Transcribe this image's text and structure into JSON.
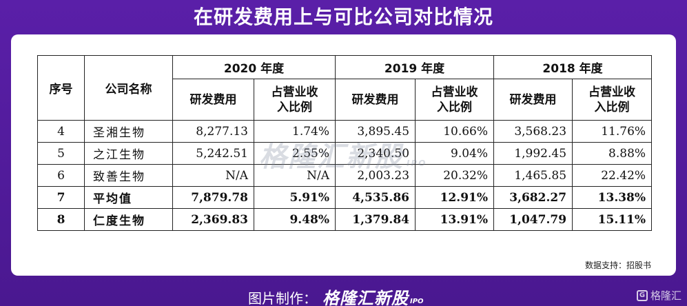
{
  "title": "在研发费用上与可比公司对比情况",
  "table": {
    "col_no": "序号",
    "col_name": "公司名称",
    "years": [
      "2020 年度",
      "2019 年度",
      "2018 年度"
    ],
    "sub_expense": "研发费用",
    "sub_ratio_line1": "占营业收",
    "sub_ratio_line2": "入比例",
    "rows": [
      {
        "no": "4",
        "name": "圣湘生物",
        "v": [
          "8,277.13",
          "1.74%",
          "3,895.45",
          "10.66%",
          "3,568.23",
          "11.76%"
        ]
      },
      {
        "no": "5",
        "name": "之江生物",
        "v": [
          "5,242.51",
          "2.55%",
          "2,340.50",
          "9.04%",
          "1,992.45",
          "8.88%"
        ]
      },
      {
        "no": "6",
        "name": "致善生物",
        "v": [
          "N/A",
          "N/A",
          "2,003.23",
          "20.32%",
          "1,465.85",
          "22.42%"
        ]
      },
      {
        "no": "7",
        "name": "平均值",
        "v": [
          "7,879.78",
          "5.91%",
          "4,535.86",
          "12.91%",
          "3,682.27",
          "13.38%"
        ]
      },
      {
        "no": "8",
        "name": "仁度生物",
        "v": [
          "2,369.83",
          "9.48%",
          "1,379.84",
          "13.91%",
          "1,047.79",
          "15.11%"
        ]
      }
    ]
  },
  "watermark": {
    "text": "格隆汇新股",
    "sub": "IPO"
  },
  "source": "数据支持：招股书",
  "footer": {
    "label": "图片制作：",
    "brand": "格隆汇新股",
    "brand_sub": "IPO",
    "corner_icon": "G",
    "corner": "格隆汇"
  }
}
